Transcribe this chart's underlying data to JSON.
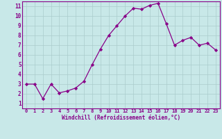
{
  "x": [
    0,
    1,
    2,
    3,
    4,
    5,
    6,
    7,
    8,
    9,
    10,
    11,
    12,
    13,
    14,
    15,
    16,
    17,
    18,
    19,
    20,
    21,
    22,
    23
  ],
  "y": [
    3.0,
    3.0,
    1.5,
    3.0,
    2.1,
    2.3,
    2.6,
    3.3,
    5.0,
    6.6,
    8.0,
    9.0,
    10.0,
    10.8,
    10.7,
    11.1,
    11.3,
    9.2,
    7.0,
    7.5,
    7.8,
    7.0,
    7.2,
    6.5
  ],
  "line_color": "#880088",
  "marker": "D",
  "marker_size": 2.2,
  "background_color": "#c8e8e8",
  "grid_color": "#aacccc",
  "xlabel": "Windchill (Refroidissement éolien,°C)",
  "xlabel_color": "#880088",
  "tick_color": "#880088",
  "spine_color": "#880088",
  "xlim": [
    -0.5,
    23.5
  ],
  "ylim": [
    0.5,
    11.5
  ],
  "yticks": [
    1,
    2,
    3,
    4,
    5,
    6,
    7,
    8,
    9,
    10,
    11
  ],
  "xticks": [
    0,
    1,
    2,
    3,
    4,
    5,
    6,
    7,
    8,
    9,
    10,
    11,
    12,
    13,
    14,
    15,
    16,
    17,
    18,
    19,
    20,
    21,
    22,
    23
  ]
}
